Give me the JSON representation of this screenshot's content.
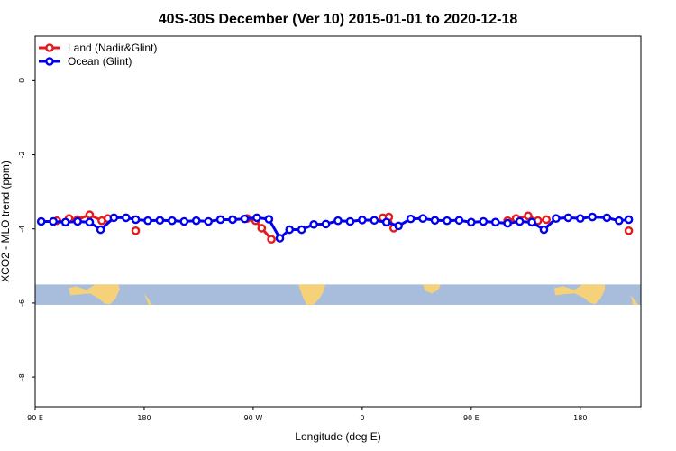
{
  "chart_data": {
    "type": "line",
    "title": "40S-30S December (Ver 10)   2015-01-01 to 2020-12-18",
    "xlabel": "Longitude (deg E)",
    "ylabel": "XCO2 - MLO trend (ppm)",
    "xlim": [
      90,
      590
    ],
    "ylim": [
      -8.8,
      1.2
    ],
    "x_ticks": [
      {
        "value": 90,
        "label": "90 E"
      },
      {
        "value": 180,
        "label": "180"
      },
      {
        "value": 270,
        "label": "90 W"
      },
      {
        "value": 360,
        "label": "0"
      },
      {
        "value": 450,
        "label": "90 E"
      },
      {
        "value": 540,
        "label": "180"
      }
    ],
    "y_ticks": [
      {
        "value": 0,
        "label": "0"
      },
      {
        "value": -2,
        "label": "-2"
      },
      {
        "value": -4,
        "label": "-4"
      },
      {
        "value": -6,
        "label": "-6"
      },
      {
        "value": -8,
        "label": "-8"
      }
    ],
    "legend_position": "top-left",
    "map_strip": {
      "y_top": -5.5,
      "y_bottom": -6.05,
      "ocean_color": "#a8bddc",
      "land_color": "#f5d27a"
    },
    "series": [
      {
        "name": "Land (Nadir&Glint)",
        "color": "#e41a1c",
        "segments": [
          [
            [
              118,
              -3.72
            ],
            [
              125,
              -3.75
            ],
            [
              135,
              -3.62
            ],
            [
              145,
              -3.78
            ],
            [
              150,
              -3.72
            ]
          ],
          [
            [
              265,
              -3.72
            ],
            [
              272,
              -3.78
            ],
            [
              277,
              -3.98
            ],
            [
              285,
              -4.28
            ]
          ],
          [
            [
              377,
              -3.7
            ],
            [
              382,
              -3.68
            ],
            [
              386,
              -3.98
            ]
          ],
          [
            [
              480,
              -3.78
            ],
            [
              487,
              -3.72
            ],
            [
              497,
              -3.65
            ],
            [
              505,
              -3.78
            ],
            [
              512,
              -3.75
            ]
          ],
          [
            [
              580,
              -4.05
            ]
          ]
        ],
        "extra_points": [
          [
            108,
            -3.78
          ],
          [
            173,
            -4.05
          ]
        ]
      },
      {
        "name": "Ocean (Glint)",
        "color": "#0000ee",
        "segments": [
          [
            [
              95,
              -3.8
            ],
            [
              105,
              -3.8
            ],
            [
              115,
              -3.82
            ],
            [
              125,
              -3.8
            ],
            [
              135,
              -3.82
            ],
            [
              144,
              -4.02
            ],
            [
              155,
              -3.7
            ],
            [
              165,
              -3.7
            ],
            [
              173,
              -3.75
            ],
            [
              183,
              -3.78
            ],
            [
              193,
              -3.77
            ],
            [
              203,
              -3.78
            ],
            [
              213,
              -3.8
            ],
            [
              223,
              -3.78
            ],
            [
              233,
              -3.8
            ],
            [
              243,
              -3.75
            ],
            [
              253,
              -3.75
            ],
            [
              263,
              -3.73
            ],
            [
              273,
              -3.7
            ],
            [
              283,
              -3.74
            ],
            [
              292,
              -4.25
            ],
            [
              300,
              -4.02
            ],
            [
              310,
              -4.02
            ],
            [
              320,
              -3.88
            ],
            [
              330,
              -3.87
            ],
            [
              340,
              -3.78
            ],
            [
              350,
              -3.8
            ],
            [
              360,
              -3.76
            ],
            [
              370,
              -3.77
            ],
            [
              380,
              -3.82
            ],
            [
              390,
              -3.92
            ],
            [
              400,
              -3.73
            ],
            [
              410,
              -3.72
            ],
            [
              420,
              -3.77
            ],
            [
              430,
              -3.78
            ],
            [
              440,
              -3.77
            ],
            [
              450,
              -3.82
            ],
            [
              460,
              -3.8
            ],
            [
              470,
              -3.82
            ],
            [
              480,
              -3.85
            ],
            [
              490,
              -3.8
            ],
            [
              500,
              -3.82
            ],
            [
              510,
              -4.02
            ],
            [
              520,
              -3.72
            ],
            [
              530,
              -3.7
            ],
            [
              540,
              -3.72
            ],
            [
              550,
              -3.68
            ],
            [
              562,
              -3.7
            ],
            [
              572,
              -3.78
            ],
            [
              580,
              -3.75
            ]
          ]
        ]
      }
    ]
  }
}
